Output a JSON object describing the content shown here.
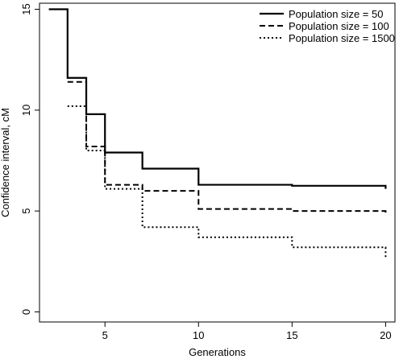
{
  "chart_data": {
    "type": "line",
    "xlabel": "Generations",
    "ylabel": "Confidence interval, cM",
    "xlim": [
      1.5,
      20.5
    ],
    "ylim": [
      -0.5,
      15.3
    ],
    "xticks": [
      5,
      10,
      15,
      20
    ],
    "yticks": [
      0,
      5,
      10,
      15
    ],
    "grid": false,
    "legend_position": "top-right",
    "series": [
      {
        "name": "Population size = 50",
        "style": "solid",
        "color": "#000000",
        "steps": [
          [
            2,
            15.0
          ],
          [
            3,
            11.6
          ],
          [
            4,
            9.8
          ],
          [
            5,
            7.9
          ],
          [
            7,
            7.1
          ],
          [
            10,
            6.3
          ],
          [
            15,
            6.25
          ],
          [
            20,
            6.1
          ]
        ]
      },
      {
        "name": "Population size = 100",
        "style": "dashed",
        "color": "#000000",
        "steps": [
          [
            3,
            11.4
          ],
          [
            4,
            8.2
          ],
          [
            5,
            6.3
          ],
          [
            7,
            6.0
          ],
          [
            10,
            5.1
          ],
          [
            15,
            5.0
          ],
          [
            20,
            4.85
          ]
        ]
      },
      {
        "name": "Population size = 1500",
        "style": "dotted",
        "color": "#000000",
        "steps": [
          [
            3,
            10.2
          ],
          [
            4,
            8.0
          ],
          [
            5,
            6.1
          ],
          [
            7,
            4.2
          ],
          [
            10,
            3.7
          ],
          [
            15,
            3.2
          ],
          [
            20,
            2.7
          ]
        ]
      }
    ]
  }
}
